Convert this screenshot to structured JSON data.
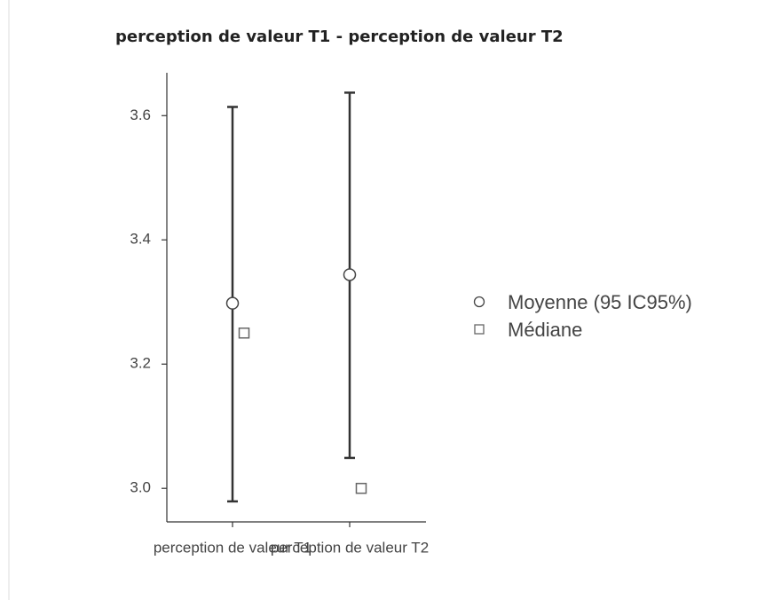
{
  "chart_data": {
    "type": "errorbar",
    "title": "perception de valeur T1 - perception de valeur T2",
    "categories": [
      "perception de valeur T1",
      "perception de valeur T2"
    ],
    "series": [
      {
        "name": "Moyenne (95 IC95%)",
        "marker": "circle",
        "color": "#444444",
        "values": [
          3.298,
          3.344
        ],
        "lower": [
          2.979,
          3.049
        ],
        "upper": [
          3.614,
          3.637
        ]
      },
      {
        "name": "Médiane",
        "marker": "square",
        "color": "#666666",
        "values": [
          3.25,
          3.0
        ]
      }
    ],
    "ylim": [
      2.946,
      3.669
    ],
    "yticks": [
      {
        "value": 3.0,
        "label": "3.0"
      },
      3.2,
      3.4,
      3.6
    ],
    "grid": false
  }
}
